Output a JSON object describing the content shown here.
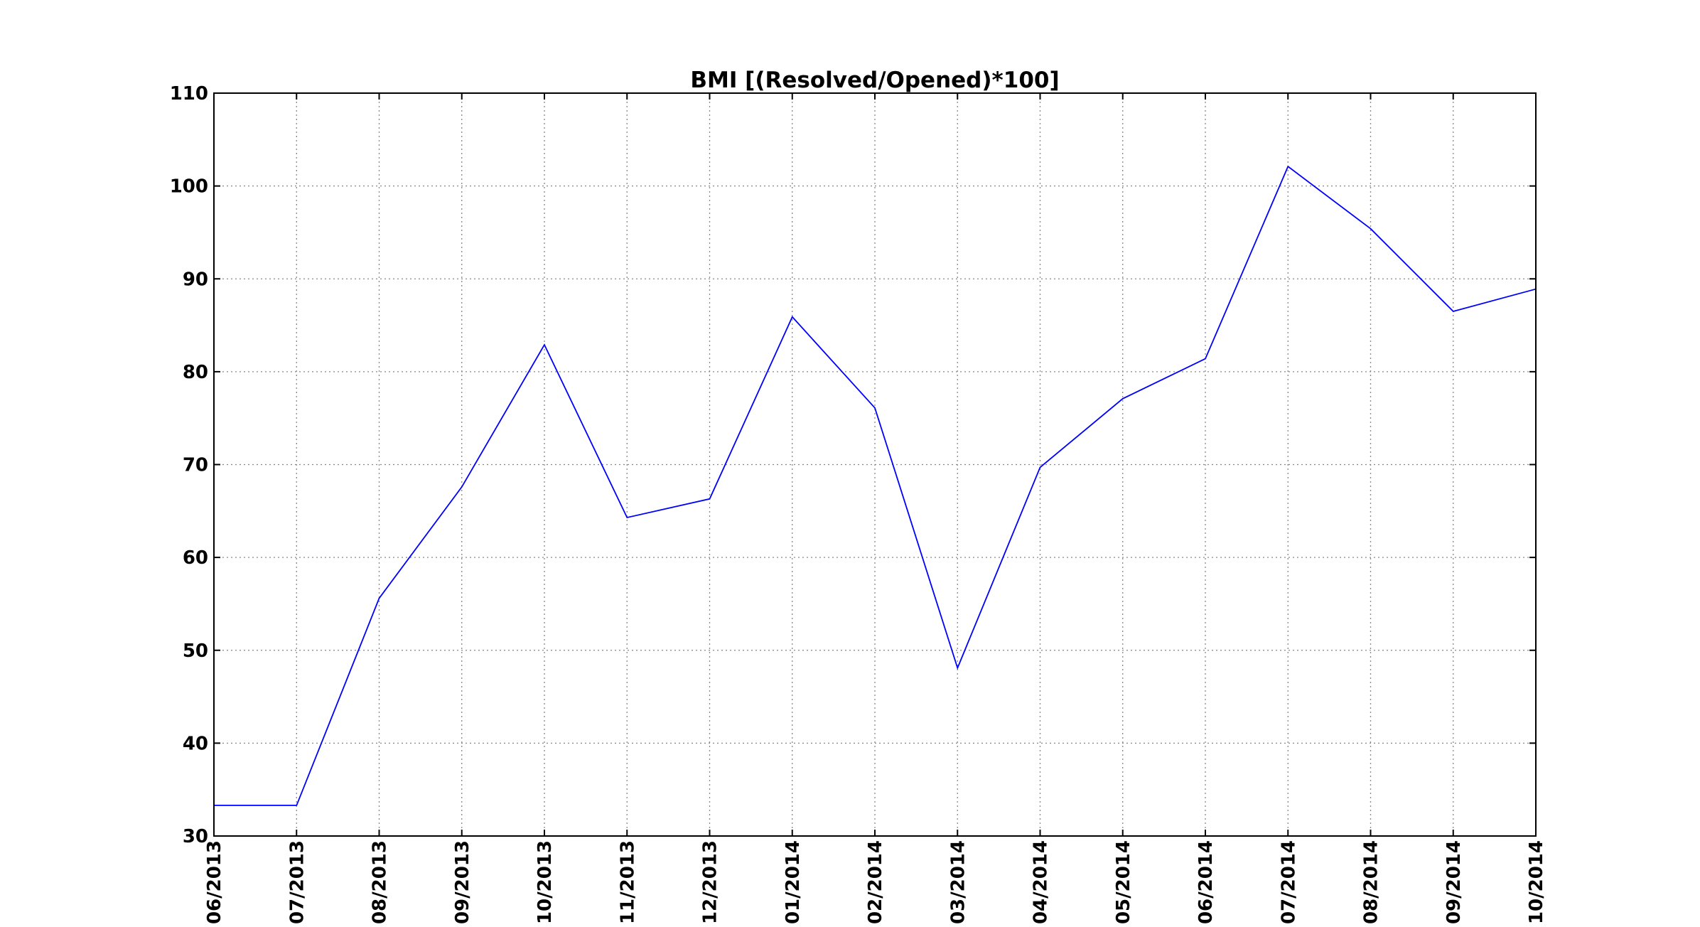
{
  "chart_data": {
    "type": "line",
    "title": "BMI [(Resolved/Opened)*100]",
    "xlabel": "",
    "ylabel": "",
    "categories": [
      "06/2013",
      "07/2013",
      "08/2013",
      "09/2013",
      "10/2013",
      "11/2013",
      "12/2013",
      "01/2014",
      "02/2014",
      "03/2014",
      "04/2014",
      "05/2014",
      "06/2014",
      "07/2014",
      "08/2014",
      "09/2014",
      "10/2014"
    ],
    "series": [
      {
        "color": "#0000ff",
        "values": [
          33.3,
          33.3,
          55.6,
          67.6,
          82.9,
          64.3,
          66.3,
          85.9,
          76.1,
          48.1,
          69.7,
          77.1,
          81.4,
          102.1,
          95.4,
          86.5,
          88.9
        ]
      }
    ],
    "ylim": [
      30,
      110
    ],
    "yticks": [
      30,
      40,
      50,
      60,
      70,
      80,
      90,
      100,
      110
    ],
    "grid": true,
    "legend": "none"
  }
}
